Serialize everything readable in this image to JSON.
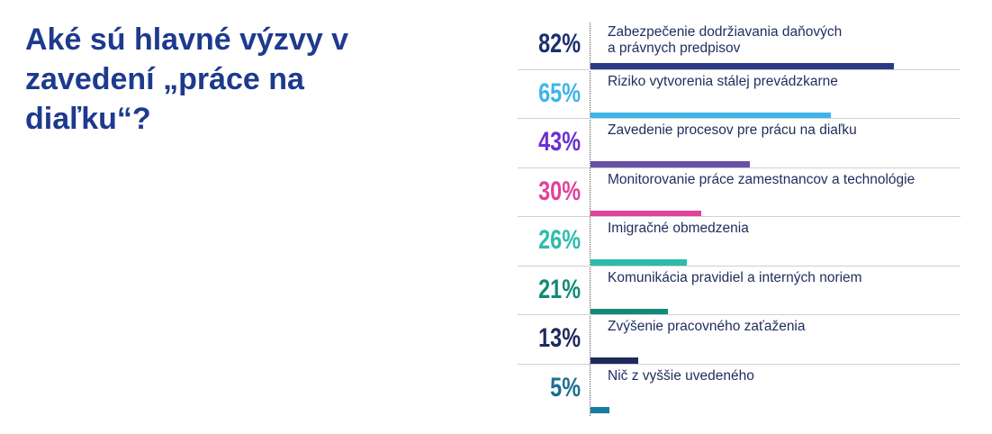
{
  "chart_data": {
    "type": "bar",
    "orientation": "horizontal",
    "title": "Aké sú hlavné výzvy v zavedení „práce na diaľku“?",
    "categories": [
      "Zabezpečenie dodržiavania daňových\na právnych predpisov",
      "Riziko vytvorenia stálej prevádzkarne",
      "Zavedenie procesov pre prácu na diaľku",
      "Monitorovanie práce zamestnancov a technológie",
      "Imigračné obmedzenia",
      "Komunikácia pravidiel a interných noriem",
      "Zvýšenie pracovného zaťaženia",
      "Nič z vyššie uvedeného"
    ],
    "values": [
      82,
      65,
      43,
      30,
      26,
      21,
      13,
      5
    ],
    "value_labels": [
      "82%",
      "65%",
      "43%",
      "30%",
      "26%",
      "21%",
      "13%",
      "5%"
    ],
    "colors": [
      "#2b3a86",
      "#3db5e8",
      "#6a4fa6",
      "#e2409b",
      "#2dbcab",
      "#128a78",
      "#1f2a5c",
      "#197d9e"
    ],
    "label_colors": [
      "#1c2f6e",
      "#3db5e8",
      "#6a2fd0",
      "#e2409b",
      "#2dbcab",
      "#128a78",
      "#1f2a5c",
      "#1a6f92"
    ],
    "xlim": [
      0,
      100
    ]
  }
}
